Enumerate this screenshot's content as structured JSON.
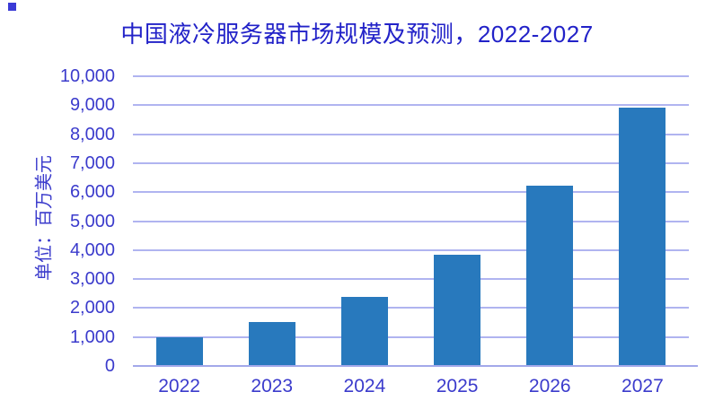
{
  "decor": {
    "corner_square_color": "#3A3AD6"
  },
  "chart_data": {
    "type": "bar",
    "title": "中国液冷服务器市场规模及预测，2022-2027",
    "ylabel": "单位：百万美元",
    "xlabel": "",
    "categories": [
      "2022",
      "2023",
      "2024",
      "2025",
      "2026",
      "2027"
    ],
    "values": [
      950,
      1500,
      2350,
      3800,
      6200,
      8900
    ],
    "ylim": [
      0,
      10000
    ],
    "ytick_step": 1000,
    "ytick_labels": [
      "0",
      "1,000",
      "2,000",
      "3,000",
      "4,000",
      "5,000",
      "6,000",
      "7,000",
      "8,000",
      "9,000",
      "10,000"
    ],
    "grid": true,
    "legend": "none",
    "colors": {
      "bar": "#2879BD",
      "title_text": "#2222C8",
      "axis_text": "#3B3BCC",
      "gridline": "#B0B4F0",
      "baseline": "#A3A8EA"
    }
  }
}
